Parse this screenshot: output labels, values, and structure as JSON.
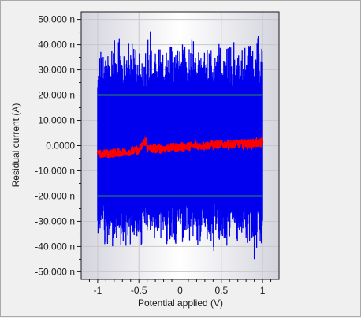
{
  "chart_data": {
    "type": "line",
    "title": "",
    "xlabel": "Potential applied (V)",
    "ylabel": "Residual current  (A)",
    "xlim": [
      -1.2,
      1.2
    ],
    "ylim": [
      -53,
      53
    ],
    "y_unit": "nA",
    "x_ticks": [
      {
        "value": -1,
        "label": "-1"
      },
      {
        "value": -0.5,
        "label": "-0.5"
      },
      {
        "value": 0,
        "label": "0"
      },
      {
        "value": 0.5,
        "label": "0.5"
      },
      {
        "value": 1,
        "label": "1"
      }
    ],
    "y_ticks": [
      {
        "value": 50,
        "label": "50.000 n"
      },
      {
        "value": 40,
        "label": "40.000 n"
      },
      {
        "value": 30,
        "label": "30.000 n"
      },
      {
        "value": 20,
        "label": "20.000 n"
      },
      {
        "value": 10,
        "label": "10.000 n"
      },
      {
        "value": 0,
        "label": "0.0000"
      },
      {
        "value": -10,
        "label": "-10.000 n"
      },
      {
        "value": -20,
        "label": "-20.000 n"
      },
      {
        "value": -30,
        "label": "-30.000 n"
      },
      {
        "value": -40,
        "label": "-40.000 n"
      },
      {
        "value": -50,
        "label": "-50.000 n"
      }
    ],
    "grid": true,
    "series": [
      {
        "color": "#0000ee",
        "x_range": [
          -1,
          1
        ],
        "band": [
          -20,
          20
        ],
        "envelope_x": [
          -1,
          -0.95,
          -0.9,
          -0.85,
          -0.8,
          -0.75,
          -0.7,
          -0.65,
          -0.6,
          -0.55,
          -0.5,
          -0.45,
          -0.4,
          -0.35,
          -0.3,
          -0.25,
          -0.2,
          -0.15,
          -0.1,
          -0.05,
          0,
          0.05,
          0.1,
          0.15,
          0.2,
          0.25,
          0.3,
          0.35,
          0.4,
          0.45,
          0.5,
          0.55,
          0.6,
          0.65,
          0.7,
          0.75,
          0.8,
          0.85,
          0.9,
          0.95,
          1
        ],
        "envelope_max": [
          30,
          44,
          40,
          38,
          42,
          45,
          37,
          41,
          40,
          43,
          39,
          36,
          42,
          48,
          38,
          40,
          44,
          37,
          41,
          39,
          43,
          40,
          38,
          45,
          41,
          37,
          42,
          40,
          39,
          44,
          38,
          41,
          40,
          43,
          37,
          42,
          39,
          41,
          38,
          45,
          40
        ],
        "envelope_min": [
          -34,
          -45,
          -40,
          -38,
          -42,
          -37,
          -44,
          -39,
          -41,
          -36,
          -43,
          -38,
          -40,
          -33,
          -42,
          -39,
          -37,
          -41,
          -38,
          -40,
          -36,
          -42,
          -39,
          -37,
          -41,
          -38,
          -40,
          -36,
          -43,
          -39,
          -38,
          -44,
          -40,
          -37,
          -42,
          -39,
          -41,
          -38,
          -45,
          -40,
          -39
        ]
      },
      {
        "color": "#ff0000",
        "x": [
          -1,
          -0.5,
          -0.42,
          -0.38,
          0,
          0.5,
          1
        ],
        "y": [
          -3.5,
          -2,
          2,
          -1.5,
          -0.5,
          0.5,
          1
        ]
      },
      {
        "color": "#2e8b57",
        "x": [
          -1,
          1
        ],
        "y": [
          20,
          20
        ]
      },
      {
        "color": "#2e8b57",
        "x": [
          -1,
          1
        ],
        "y": [
          -20,
          -20
        ]
      }
    ]
  }
}
